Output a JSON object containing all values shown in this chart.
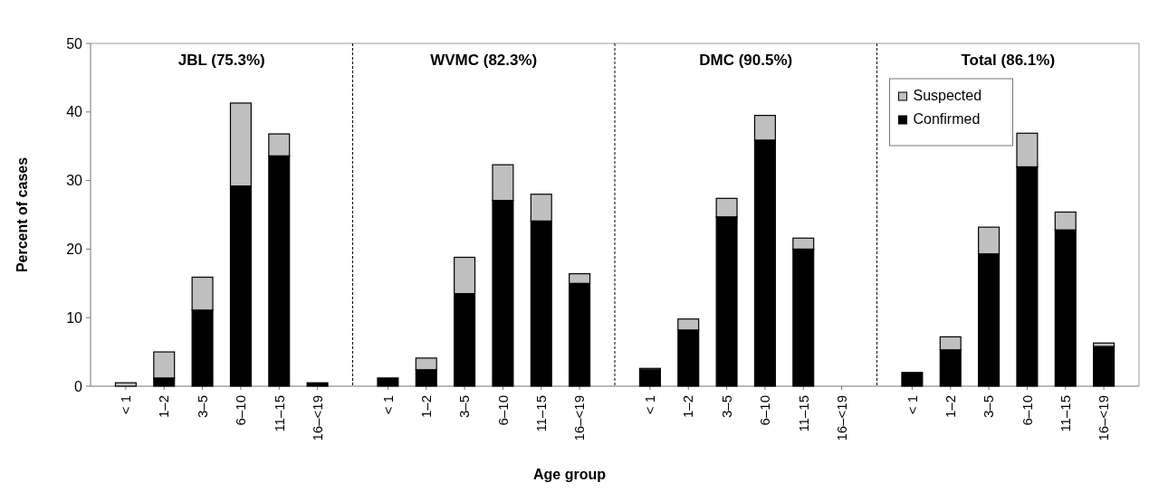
{
  "chart_data": [
    {
      "type": "bar",
      "stacked": true,
      "title": "JBL (75.3%)",
      "ylabel": "Percent of cases",
      "categories": [
        "< 1",
        "1–2",
        "3–5",
        "6–10",
        "11–15",
        "16–<19"
      ],
      "ylim": [
        0,
        50
      ],
      "yticks": [
        0,
        10,
        20,
        30,
        40,
        50
      ],
      "legend": false,
      "series": [
        {
          "color": "#000000",
          "values": [
            0,
            1.2,
            11.1,
            29.2,
            33.6,
            0.5
          ]
        },
        {
          "color": "#c0c0c0",
          "values": [
            0.5,
            3.8,
            4.8,
            12.1,
            3.2,
            0
          ]
        }
      ]
    },
    {
      "type": "bar",
      "stacked": true,
      "title": "WVMC (82.3%)",
      "xlabel": "Age group",
      "categories": [
        "< 1",
        "1–2",
        "3–5",
        "6–10",
        "11–15",
        "16–<19"
      ],
      "ylim": [
        0,
        50
      ],
      "tick_labels": "x",
      "legend": false,
      "series": [
        {
          "color": "#000000",
          "values": [
            1.2,
            2.4,
            13.5,
            27.1,
            24.1,
            15.0
          ]
        },
        {
          "color": "#c0c0c0",
          "values": [
            0,
            1.7,
            5.3,
            5.2,
            3.9,
            1.4
          ]
        }
      ]
    },
    {
      "type": "bar",
      "stacked": true,
      "title": "DMC (90.5%)",
      "categories": [
        "< 1",
        "1–2",
        "3–5",
        "6–10",
        "11–15",
        "16–<19"
      ],
      "ylim": [
        0,
        50
      ],
      "tick_labels": "x",
      "legend": false,
      "series": [
        {
          "color": "#000000",
          "values": [
            2.4,
            8.2,
            24.7,
            35.9,
            20.0,
            0
          ]
        },
        {
          "color": "#c0c0c0",
          "values": [
            0.2,
            1.6,
            2.7,
            3.6,
            1.6,
            0
          ]
        }
      ]
    },
    {
      "type": "bar",
      "stacked": true,
      "title": "Total (86.1%)",
      "categories": [
        "< 1",
        "1–2",
        "3–5",
        "6–10",
        "11–15",
        "16–<19"
      ],
      "ylim": [
        0,
        50
      ],
      "tick_labels": "x",
      "legend": "top left",
      "series": [
        {
          "name": "Confirmed",
          "color": "#000000",
          "values": [
            2.0,
            5.3,
            19.3,
            32.0,
            22.8,
            5.8
          ]
        },
        {
          "name": "Suspected",
          "color": "#c0c0c0",
          "values": [
            0,
            1.9,
            3.9,
            4.9,
            2.6,
            0.5
          ]
        }
      ]
    }
  ]
}
